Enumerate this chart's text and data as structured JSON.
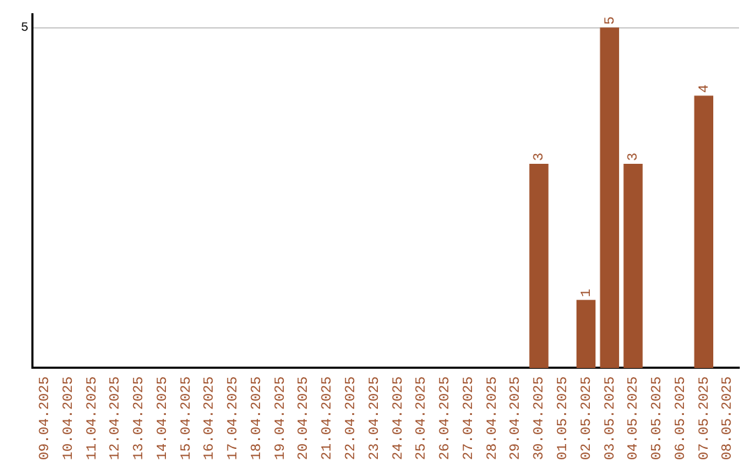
{
  "chart_data": {
    "type": "bar",
    "categories": [
      "09.04.2025",
      "10.04.2025",
      "11.04.2025",
      "12.04.2025",
      "13.04.2025",
      "14.04.2025",
      "15.04.2025",
      "16.04.2025",
      "17.04.2025",
      "18.04.2025",
      "19.04.2025",
      "20.04.2025",
      "21.04.2025",
      "22.04.2025",
      "23.04.2025",
      "24.04.2025",
      "25.04.2025",
      "26.04.2025",
      "27.04.2025",
      "28.04.2025",
      "29.04.2025",
      "30.04.2025",
      "01.05.2025",
      "02.05.2025",
      "03.05.2025",
      "04.05.2025",
      "05.05.2025",
      "06.05.2025",
      "07.05.2025",
      "08.05.2025"
    ],
    "values": [
      null,
      null,
      null,
      null,
      null,
      null,
      null,
      null,
      null,
      null,
      null,
      null,
      null,
      null,
      null,
      null,
      null,
      null,
      null,
      null,
      null,
      3,
      null,
      1,
      5,
      3,
      null,
      null,
      4,
      null
    ],
    "data_labels": true,
    "color": "#a0522d",
    "ylim": [
      0,
      5.2
    ],
    "yticks": [
      5
    ],
    "grid": "y",
    "legend": false
  }
}
